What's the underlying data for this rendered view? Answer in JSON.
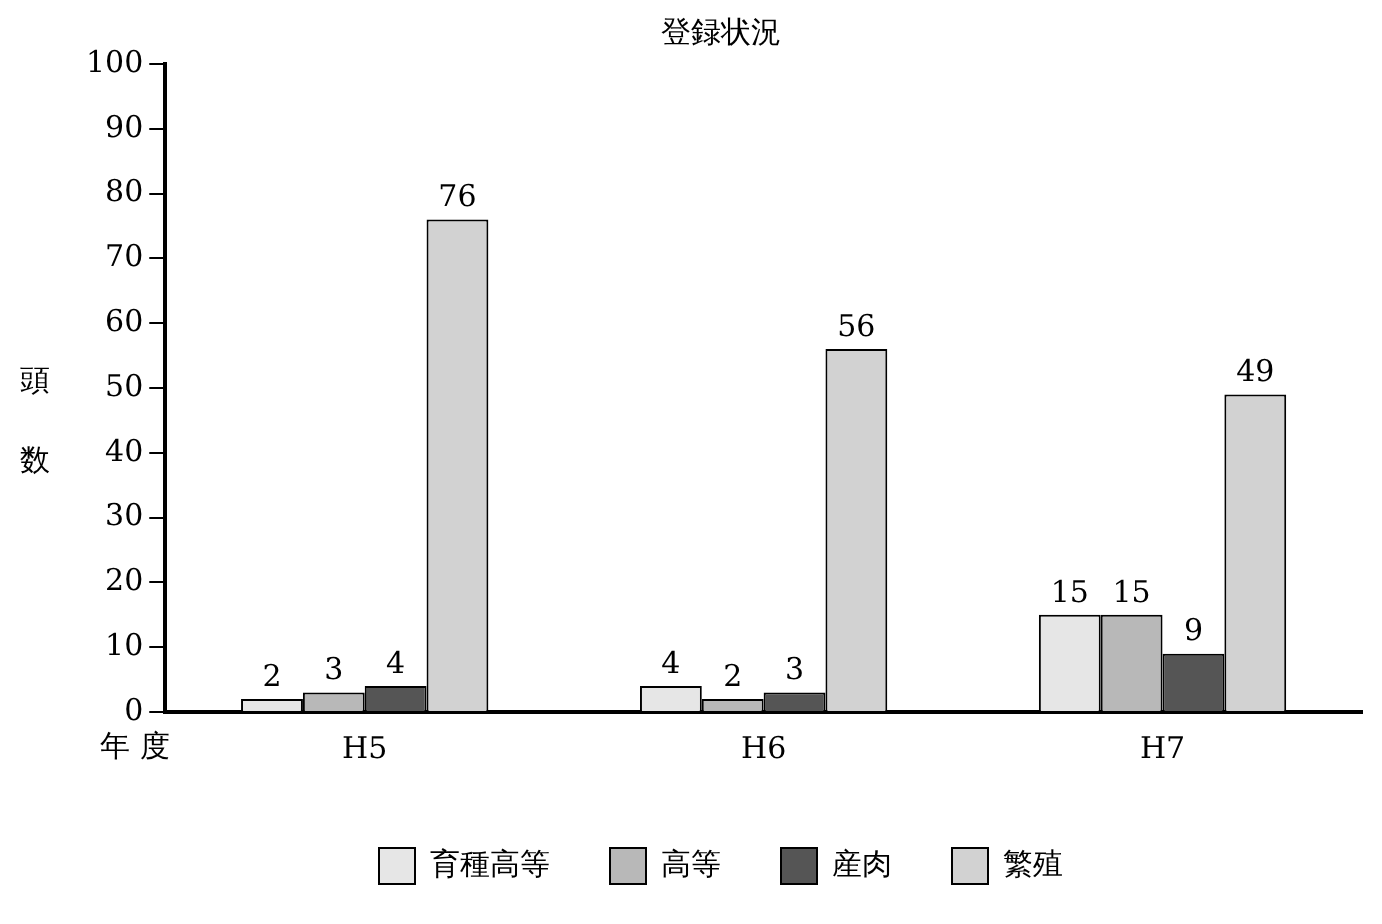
{
  "chart_data": {
    "type": "bar",
    "title": "登録状況",
    "ylabel": "頭数",
    "xlabel": "年 度",
    "categories": [
      "H5",
      "H6",
      "H7"
    ],
    "series": [
      {
        "name": "育種高等",
        "color": "#e6e6e6",
        "values": [
          2,
          4,
          15
        ]
      },
      {
        "name": "高等",
        "color": "#b8b8b8",
        "values": [
          3,
          2,
          15
        ]
      },
      {
        "name": "産肉",
        "color": "#555555",
        "values": [
          4,
          3,
          9
        ]
      },
      {
        "name": "繁殖",
        "color": "#d2d2d2",
        "values": [
          76,
          56,
          49
        ]
      }
    ],
    "ylim": [
      0,
      100
    ],
    "yticks": [
      0,
      10,
      20,
      30,
      40,
      50,
      60,
      70,
      80,
      90,
      100
    ],
    "grid": false,
    "legend": "bottom",
    "data_labels": true
  }
}
